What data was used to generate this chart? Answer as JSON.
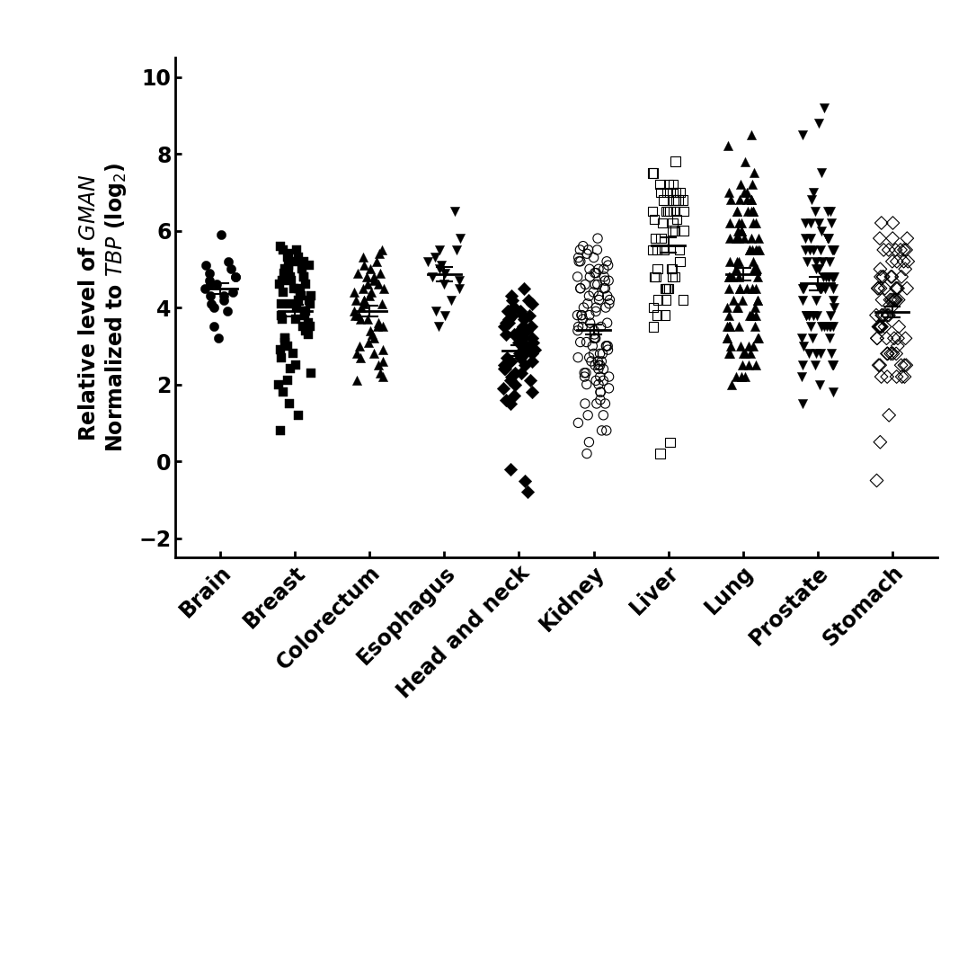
{
  "categories": [
    "Brain",
    "Breast",
    "Colorectum",
    "Esophagus",
    "Head and neck",
    "Kidney",
    "Liver",
    "Lung",
    "Prostate",
    "Stomach"
  ],
  "markers": [
    "o",
    "s",
    "^",
    "v",
    "D",
    "o",
    "s",
    "^",
    "v",
    "D"
  ],
  "filled": [
    true,
    true,
    true,
    true,
    true,
    false,
    false,
    true,
    true,
    false
  ],
  "ylim": [
    -2.5,
    10.5
  ],
  "yticks": [
    -2,
    0,
    2,
    4,
    6,
    8,
    10
  ],
  "background_color": "#ffffff",
  "data": {
    "Brain": [
      4.6,
      4.8,
      5.2,
      4.3,
      4.7,
      4.9,
      5.1,
      4.4,
      4.2,
      3.9,
      4.5,
      4.8,
      5.0,
      4.1,
      4.6,
      4.3,
      3.5,
      5.9,
      3.2,
      4.0
    ],
    "Breast": [
      5.3,
      5.5,
      5.1,
      4.8,
      4.5,
      3.8,
      3.2,
      2.5,
      1.2,
      0.8,
      4.2,
      4.9,
      5.6,
      3.5,
      4.1,
      3.9,
      5.0,
      4.7,
      4.3,
      2.8,
      1.8,
      5.2,
      4.6,
      3.3,
      2.1,
      4.4,
      5.4,
      3.7,
      4.0,
      3.1,
      2.3,
      4.8,
      5.1,
      3.6,
      4.5,
      4.2,
      3.8,
      5.0,
      2.9,
      1.5,
      4.7,
      5.3,
      3.4,
      4.1,
      3.0,
      5.5,
      4.4,
      3.9,
      2.7,
      4.3,
      5.2,
      3.2,
      2.0,
      4.6,
      5.0,
      3.5,
      4.8,
      4.1,
      2.4,
      3.7
    ],
    "Colorectum": [
      5.5,
      4.8,
      4.2,
      3.8,
      4.5,
      4.1,
      3.5,
      2.8,
      2.2,
      3.1,
      4.9,
      5.2,
      4.6,
      3.3,
      2.5,
      4.3,
      5.0,
      3.7,
      4.4,
      2.1,
      3.9,
      4.7,
      5.1,
      3.4,
      2.9,
      4.0,
      4.8,
      3.6,
      2.7,
      4.2,
      5.3,
      3.8,
      4.5,
      2.3,
      3.2,
      4.1,
      5.4,
      3.0,
      2.6,
      4.4,
      4.9,
      3.5,
      4.2,
      2.8,
      3.7,
      4.6
    ],
    "Esophagus": [
      6.5,
      5.5,
      5.2,
      4.9,
      5.1,
      5.3,
      4.8,
      5.0,
      4.7,
      3.5,
      3.8,
      4.2,
      5.5,
      5.8,
      4.5,
      3.9,
      4.6
    ],
    "Head and neck": [
      4.2,
      3.8,
      3.5,
      3.2,
      2.8,
      2.5,
      2.2,
      1.8,
      1.5,
      3.9,
      3.1,
      2.9,
      -0.2,
      -0.5,
      -0.8,
      2.6,
      3.0,
      2.3,
      3.5,
      3.8,
      2.7,
      3.3,
      2.1,
      4.0,
      3.6,
      2.4,
      3.2,
      2.8,
      1.9,
      3.4,
      2.6,
      3.0,
      3.7,
      2.5,
      2.0,
      3.1,
      2.7,
      3.3,
      1.6,
      2.9,
      3.5,
      4.3,
      4.5,
      3.8,
      2.3,
      3.9,
      2.1,
      3.6,
      4.1,
      2.8,
      3.0,
      1.7,
      4.0,
      3.4,
      2.6,
      3.2,
      4.2,
      3.7,
      2.4,
      3.9
    ],
    "Kidney": [
      5.2,
      5.5,
      4.8,
      4.5,
      4.2,
      3.8,
      3.5,
      3.2,
      2.8,
      2.5,
      2.2,
      1.8,
      1.5,
      1.2,
      0.8,
      5.0,
      4.7,
      4.3,
      3.9,
      3.1,
      2.7,
      2.3,
      4.6,
      4.1,
      3.6,
      3.0,
      2.6,
      2.1,
      5.3,
      4.9,
      4.4,
      4.0,
      3.5,
      3.1,
      2.7,
      2.4,
      5.6,
      5.1,
      4.7,
      4.3,
      3.8,
      3.4,
      3.0,
      2.6,
      2.2,
      1.9,
      1.5,
      5.4,
      4.8,
      4.5,
      4.1,
      3.7,
      3.2,
      2.9,
      2.5,
      2.1,
      5.2,
      4.6,
      4.2,
      3.8,
      3.4,
      3.0,
      2.6,
      2.2,
      1.8,
      0.5,
      0.2,
      5.0,
      4.5,
      4.0,
      3.6,
      3.2,
      2.8,
      2.4,
      2.0,
      1.6,
      1.2,
      0.8,
      5.5,
      5.0,
      4.5,
      4.0,
      3.5,
      3.0,
      2.5,
      2.0,
      1.5,
      1.0,
      5.3,
      4.8,
      4.3,
      3.8,
      3.3,
      2.8,
      2.3,
      5.8,
      5.5,
      5.2,
      4.9,
      4.6
    ],
    "Liver": [
      7.0,
      6.8,
      6.5,
      7.2,
      6.2,
      6.8,
      7.0,
      6.5,
      6.3,
      7.5,
      6.0,
      5.5,
      4.8,
      4.5,
      4.2,
      3.8,
      0.2,
      0.5,
      7.8,
      6.5,
      5.8,
      6.8,
      7.0,
      6.5,
      5.0,
      4.5,
      7.2,
      6.8,
      6.3,
      5.5,
      4.8,
      3.5,
      4.0,
      5.2,
      6.0,
      7.0,
      5.8,
      6.5,
      4.5,
      5.0,
      4.2,
      3.8,
      4.8,
      6.2,
      7.5,
      5.5,
      6.0,
      4.5,
      7.0,
      6.8,
      5.5,
      4.8,
      7.2,
      6.5,
      5.0,
      4.2
    ],
    "Lung": [
      7.8,
      6.8,
      6.5,
      6.2,
      5.8,
      5.5,
      5.2,
      4.8,
      4.5,
      4.2,
      3.8,
      3.5,
      3.2,
      2.8,
      2.5,
      7.0,
      6.5,
      5.0,
      4.0,
      3.0,
      2.2,
      6.8,
      5.5,
      4.5,
      3.5,
      2.8,
      6.2,
      5.8,
      4.8,
      3.8,
      6.5,
      5.5,
      4.5,
      3.5,
      7.2,
      6.0,
      5.0,
      4.0,
      3.0,
      6.8,
      5.8,
      4.8,
      3.8,
      2.8,
      7.5,
      6.5,
      5.5,
      4.5,
      3.5,
      2.5,
      6.2,
      5.2,
      4.2,
      3.2,
      2.2,
      7.0,
      6.0,
      5.0,
      4.0,
      3.0,
      6.5,
      5.5,
      4.5,
      3.5,
      2.5,
      8.2,
      7.0,
      6.0,
      5.0,
      4.0,
      3.0,
      2.0,
      8.5,
      6.8,
      5.8,
      4.8,
      3.8,
      2.8,
      6.5,
      5.5,
      4.5,
      3.5,
      5.8,
      4.8,
      6.2,
      5.2,
      4.2,
      3.2,
      6.8,
      5.8,
      4.8,
      3.8,
      2.8,
      7.2,
      6.2,
      5.2,
      4.2,
      3.2,
      2.2
    ],
    "Prostate": [
      8.5,
      5.8,
      5.5,
      5.2,
      4.8,
      4.5,
      4.2,
      3.8,
      3.5,
      3.2,
      2.8,
      2.5,
      2.2,
      1.8,
      1.5,
      6.5,
      5.0,
      4.0,
      3.0,
      2.0,
      5.5,
      6.2,
      4.5,
      3.5,
      5.0,
      6.0,
      4.5,
      3.5,
      2.5,
      5.8,
      4.8,
      3.8,
      2.8,
      7.5,
      6.2,
      5.2,
      4.2,
      3.2,
      5.5,
      4.5,
      3.5,
      2.5,
      9.2,
      8.8,
      6.8,
      5.8,
      4.8,
      3.8,
      2.8,
      6.5,
      5.5,
      4.5,
      3.5,
      2.5,
      6.2,
      5.2,
      4.2,
      3.2,
      7.0,
      5.8,
      4.8,
      3.8,
      2.8,
      5.5,
      4.5,
      5.8,
      4.8,
      3.8,
      6.5,
      5.5,
      4.5,
      3.5,
      5.8,
      4.8,
      5.5,
      4.5,
      3.5,
      2.5,
      4.8,
      3.8,
      5.2,
      6.2
    ],
    "Stomach": [
      5.8,
      5.5,
      4.8,
      4.5,
      4.2,
      3.8,
      3.5,
      3.2,
      2.8,
      2.5,
      6.2,
      5.2,
      4.2,
      3.2,
      2.2,
      1.2,
      0.5,
      -0.5,
      5.5,
      4.5,
      3.5,
      4.8,
      5.0,
      3.8,
      2.8,
      4.2,
      5.5,
      4.2,
      3.2,
      2.2,
      5.8,
      4.8,
      3.8,
      2.8,
      5.5,
      4.5,
      3.5,
      2.5,
      4.8,
      3.8,
      2.8,
      5.2,
      4.2,
      3.2,
      2.2,
      5.5,
      4.5,
      3.5,
      2.5,
      4.8,
      4.5,
      5.2,
      3.8,
      2.8,
      5.0,
      4.0,
      3.0,
      6.2,
      4.2,
      3.2,
      2.2,
      4.5,
      3.5,
      2.5,
      5.8,
      4.8,
      3.8,
      2.8,
      5.2,
      4.2,
      3.2,
      2.2,
      4.5,
      3.5,
      2.5,
      5.5,
      4.5,
      3.5
    ]
  }
}
